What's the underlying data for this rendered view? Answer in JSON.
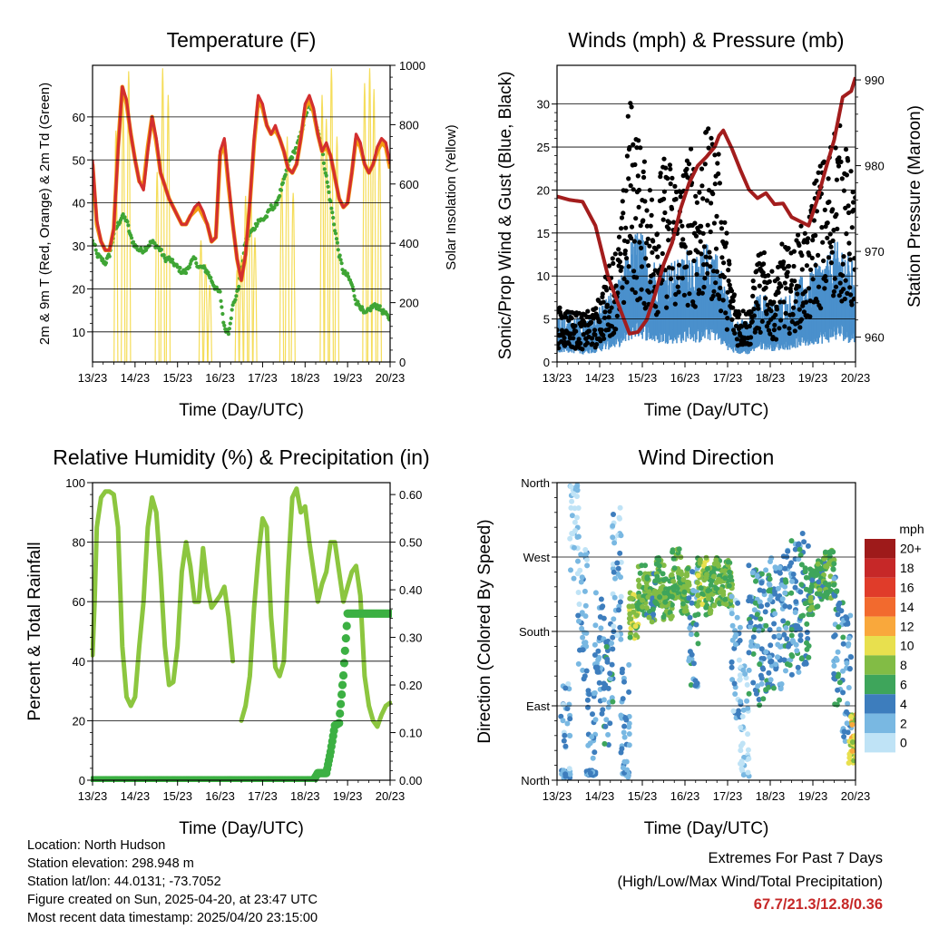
{
  "chart_data": [
    {
      "type": "line",
      "title": "Temperature (F)",
      "xlabel": "Time (Day/UTC)",
      "ylabel": "2m & 9m T (Red, Orange) & 2m Td (Green)",
      "ylabel_right": "Solar Insolation (Yellow)",
      "xticks": [
        "13/23",
        "14/23",
        "15/23",
        "16/23",
        "17/23",
        "18/23",
        "19/23",
        "20/23"
      ],
      "ylim": [
        3,
        72
      ],
      "yticks": [
        10,
        20,
        30,
        40,
        50,
        60
      ],
      "ylim_right": [
        0,
        1000
      ],
      "yticks_right": [
        0,
        200,
        400,
        600,
        800,
        1000
      ],
      "grid": true,
      "x": [
        0,
        0.05,
        0.1,
        0.2,
        0.3,
        0.4,
        0.5,
        0.6,
        0.7,
        0.8,
        0.9,
        1.0,
        1.1,
        1.2,
        1.3,
        1.4,
        1.5,
        1.6,
        1.7,
        1.8,
        1.9,
        2.0,
        2.1,
        2.2,
        2.3,
        2.4,
        2.5,
        2.6,
        2.7,
        2.8,
        2.9,
        3.0,
        3.1,
        3.2,
        3.3,
        3.4,
        3.5,
        3.6,
        3.7,
        3.8,
        3.9,
        4.0,
        4.1,
        4.2,
        4.3,
        4.4,
        4.5,
        4.6,
        4.7,
        4.8,
        4.9,
        5.0,
        5.1,
        5.2,
        5.3,
        5.4,
        5.5,
        5.6,
        5.7,
        5.8,
        5.9,
        6.0,
        6.1,
        6.2,
        6.3,
        6.4,
        6.5,
        6.6,
        6.7,
        6.8,
        6.9,
        7.0
      ],
      "series": [
        {
          "values": [
            50,
            43,
            36,
            31,
            29,
            29,
            34,
            52,
            67,
            64,
            56,
            50,
            45,
            43,
            52,
            60,
            55,
            47,
            44,
            41,
            39,
            37,
            35,
            35,
            37,
            39,
            40,
            38,
            35,
            31,
            32,
            52,
            55,
            45,
            35,
            27,
            22,
            28,
            40,
            55,
            65,
            63,
            58,
            56,
            58,
            55,
            52,
            48,
            47,
            49,
            55,
            63,
            65,
            62,
            56,
            52,
            54,
            51,
            46,
            41,
            39,
            40,
            47,
            56,
            54,
            49,
            47,
            49,
            53,
            55,
            54,
            49
          ],
          "color": "#d32f2f"
        },
        {
          "values": [
            49,
            42,
            35,
            31,
            29,
            29,
            34,
            53,
            67,
            63,
            56,
            50,
            45,
            44,
            53,
            60,
            54,
            47,
            44,
            41,
            39,
            37,
            35,
            35,
            37,
            38,
            39,
            37,
            35,
            31,
            32,
            51,
            54,
            44,
            35,
            27,
            22,
            28,
            40,
            54,
            64,
            62,
            58,
            56,
            57,
            55,
            52,
            48,
            47,
            49,
            55,
            62,
            64,
            61,
            56,
            52,
            53,
            51,
            46,
            41,
            39,
            40,
            47,
            55,
            53,
            49,
            47,
            49,
            52,
            54,
            53,
            48
          ],
          "color": "#f39c12"
        },
        {
          "values": [
            31,
            30,
            28,
            27,
            26,
            28,
            33,
            35,
            37,
            36,
            32,
            30,
            29,
            29,
            30,
            31,
            30,
            29,
            27,
            27,
            26,
            25,
            24,
            24,
            26,
            27,
            25,
            25,
            24,
            22,
            20,
            19,
            11,
            10,
            16,
            19,
            24,
            31,
            33,
            34,
            36,
            36,
            37,
            39,
            39,
            42,
            45,
            49,
            51,
            53,
            56,
            60,
            63,
            61,
            57,
            52,
            46,
            40,
            34,
            28,
            24,
            23,
            21,
            17,
            16,
            14,
            15,
            16,
            16,
            15,
            14,
            13
          ],
          "color": "#3fa535"
        }
      ],
      "solar_peaks": [
        {
          "day": 0.55,
          "peak": 780
        },
        {
          "day": 0.72,
          "peak": 880
        },
        {
          "day": 0.85,
          "peak": 980
        },
        {
          "day": 1.52,
          "peak": 640
        },
        {
          "day": 1.65,
          "peak": 990
        },
        {
          "day": 1.78,
          "peak": 900
        },
        {
          "day": 2.55,
          "peak": 410
        },
        {
          "day": 2.66,
          "peak": 330
        },
        {
          "day": 2.76,
          "peak": 260
        },
        {
          "day": 3.4,
          "peak": 310
        },
        {
          "day": 3.5,
          "peak": 360
        },
        {
          "day": 3.6,
          "peak": 560
        },
        {
          "day": 3.72,
          "peak": 620
        },
        {
          "day": 3.82,
          "peak": 420
        },
        {
          "day": 4.45,
          "peak": 620
        },
        {
          "day": 4.58,
          "peak": 760
        },
        {
          "day": 4.72,
          "peak": 570
        },
        {
          "day": 5.4,
          "peak": 900
        },
        {
          "day": 5.5,
          "peak": 820
        },
        {
          "day": 5.62,
          "peak": 990
        },
        {
          "day": 5.75,
          "peak": 760
        },
        {
          "day": 6.4,
          "peak": 940
        },
        {
          "day": 6.52,
          "peak": 990
        },
        {
          "day": 6.62,
          "peak": 920
        },
        {
          "day": 6.75,
          "peak": 750
        }
      ],
      "solar_color": "#f5dd5a"
    },
    {
      "type": "scatter",
      "title": "Winds (mph) & Pressure (mb)",
      "xlabel": "Time (Day/UTC)",
      "ylabel": "Sonic/Prop Wind & Gust (Blue, Black)",
      "ylabel_right": "Station Pressure (Maroon)",
      "xticks": [
        "13/23",
        "14/23",
        "15/23",
        "16/23",
        "17/23",
        "18/23",
        "19/23",
        "20/23"
      ],
      "ylim": [
        0,
        34.5
      ],
      "yticks": [
        0,
        5,
        10,
        15,
        20,
        25,
        30
      ],
      "ylim_right": [
        957.1,
        991.7
      ],
      "yticks_right": [
        960,
        970,
        980,
        990
      ],
      "grid": true,
      "x": [
        0,
        0.3,
        0.6,
        0.9,
        1.2,
        1.5,
        1.7,
        1.9,
        2.1,
        2.3,
        2.5,
        2.7,
        2.9,
        3.1,
        3.3,
        3.5,
        3.7,
        3.8,
        3.9,
        4.1,
        4.3,
        4.5,
        4.7,
        4.9,
        5.1,
        5.3,
        5.5,
        5.7,
        5.9,
        6.1,
        6.3,
        6.5,
        6.7,
        6.9,
        7.0
      ],
      "wind_mean": [
        3,
        3,
        2.5,
        3,
        4,
        5,
        7,
        8,
        7,
        6,
        6,
        6,
        6,
        7,
        6,
        7,
        7,
        6,
        5,
        3,
        2.5,
        2.5,
        4,
        4,
        3.5,
        4,
        4,
        5,
        5,
        6,
        6,
        7,
        7,
        6,
        6
      ],
      "gust_mean": [
        4,
        4,
        3.5,
        4,
        7,
        10,
        20,
        17,
        14,
        13,
        15,
        15,
        14,
        16,
        15,
        17,
        17,
        15,
        12,
        6,
        4,
        4,
        8,
        8,
        6,
        9,
        8,
        10,
        10,
        15,
        15,
        18,
        17,
        14,
        13
      ],
      "series": [
        {
          "name": "Station Pressure",
          "values": [
            976.4,
            976,
            975.8,
            973,
            967,
            963,
            960.4,
            960.6,
            962,
            965,
            968.5,
            971,
            975,
            978,
            980,
            981,
            982.2,
            983.5,
            984.1,
            982,
            979.5,
            977.2,
            976.2,
            976.8,
            975.5,
            975.6,
            974,
            973.5,
            973,
            976,
            979.6,
            983,
            988,
            988.7,
            990.3
          ],
          "color": "#a31d1d"
        }
      ],
      "wind_color": "#4a90cc",
      "gust_color": "#000000"
    },
    {
      "type": "line",
      "title": "Relative Humidity (%) & Precipitation (in)",
      "xlabel": "Time (Day/UTC)",
      "ylabel": "Percent & Total Rainfall",
      "xticks": [
        "13/23",
        "14/23",
        "15/23",
        "16/23",
        "17/23",
        "18/23",
        "19/23",
        "20/23"
      ],
      "ylim": [
        0,
        100
      ],
      "yticks": [
        0,
        20,
        40,
        60,
        80,
        100
      ],
      "ylim_right": [
        0,
        0.625
      ],
      "yticks_right": [
        "0.00",
        "0.10",
        "0.20",
        "0.30",
        "0.40",
        "0.50",
        "0.60"
      ],
      "grid": true,
      "x": [
        0,
        0.05,
        0.1,
        0.2,
        0.3,
        0.4,
        0.5,
        0.6,
        0.7,
        0.8,
        0.9,
        1.0,
        1.1,
        1.2,
        1.3,
        1.4,
        1.5,
        1.6,
        1.7,
        1.8,
        1.9,
        2.0,
        2.1,
        2.2,
        2.3,
        2.4,
        2.5,
        2.6,
        2.7,
        2.8,
        2.9,
        3.0,
        3.1,
        3.2,
        3.3,
        3.4,
        3.5,
        3.6,
        3.7,
        3.8,
        3.9,
        4.0,
        4.1,
        4.2,
        4.3,
        4.4,
        4.5,
        4.6,
        4.7,
        4.8,
        4.9,
        5.0,
        5.1,
        5.2,
        5.3,
        5.4,
        5.5,
        5.6,
        5.7,
        5.8,
        5.9,
        6.0,
        6.1,
        6.2,
        6.3,
        6.4,
        6.5,
        6.6,
        6.7,
        6.8,
        6.9,
        7.0
      ],
      "series": [
        {
          "name": "RH",
          "values": [
            42,
            60,
            85,
            95,
            97,
            97,
            96,
            85,
            45,
            28,
            25,
            28,
            45,
            60,
            85,
            95,
            90,
            70,
            45,
            32,
            33,
            45,
            70,
            80,
            72,
            60,
            60,
            78,
            65,
            58,
            60,
            62,
            65,
            55,
            40,
            null,
            20,
            25,
            35,
            58,
            75,
            88,
            85,
            55,
            38,
            35,
            40,
            70,
            95,
            98,
            90,
            92,
            80,
            70,
            60,
            66,
            70,
            80,
            80,
            70,
            60,
            65,
            70,
            72,
            62,
            35,
            25,
            20,
            18,
            22,
            25,
            26
          ],
          "color": "#8cc63f"
        },
        {
          "name": "Precipitation",
          "values": [
            0,
            0,
            0,
            0,
            0,
            0,
            0,
            0,
            0,
            0,
            0,
            0,
            0,
            0,
            0,
            0,
            0,
            0,
            0,
            0,
            0,
            0,
            0,
            0,
            0,
            0,
            0,
            0,
            0,
            0,
            0,
            0,
            0,
            0,
            0,
            0,
            0,
            0,
            0,
            0,
            0,
            0,
            0,
            0,
            0,
            0,
            0,
            0,
            0,
            0,
            0,
            0,
            0,
            0,
            0.015,
            0.015,
            0.015,
            0.06,
            0.115,
            0.12,
            0.22,
            0.35,
            0.35,
            0.35,
            0.35,
            0.35,
            0.35,
            0.35,
            0.35,
            0.35,
            0.35,
            0.35
          ],
          "color": "#3cb043"
        }
      ]
    },
    {
      "type": "scatter",
      "title": "Wind Direction",
      "xlabel": "Time (Day/UTC)",
      "ylabel": "Direction (Colored By Speed)",
      "xticks": [
        "13/23",
        "14/23",
        "15/23",
        "16/23",
        "17/23",
        "18/23",
        "19/23",
        "20/23"
      ],
      "ylim": [
        0,
        360
      ],
      "yticks": [
        "North",
        "East",
        "South",
        "West",
        "North"
      ],
      "ytick_values": [
        0,
        90,
        180,
        270,
        360
      ],
      "grid": true,
      "x": [
        0.2,
        0.4,
        0.6,
        0.8,
        1.0,
        1.2,
        1.4,
        1.6,
        1.8,
        2.0,
        2.2,
        2.4,
        2.6,
        2.8,
        3.0,
        3.2,
        3.4,
        3.6,
        3.8,
        4.0,
        4.2,
        4.4,
        4.6,
        4.8,
        5.0,
        5.2,
        5.4,
        5.6,
        5.8,
        6.0,
        6.2,
        6.4,
        6.6,
        6.8,
        6.95
      ],
      "y": [
        40,
        320,
        200,
        30,
        150,
        120,
        250,
        60,
        200,
        230,
        220,
        240,
        220,
        250,
        230,
        190,
        240,
        230,
        240,
        240,
        150,
        60,
        180,
        170,
        190,
        190,
        200,
        210,
        220,
        230,
        240,
        250,
        170,
        120,
        50
      ],
      "speed": [
        2,
        1,
        2,
        3,
        3,
        4,
        2,
        3,
        8,
        7,
        6,
        7,
        7,
        7,
        7,
        4,
        8,
        7,
        7,
        7,
        2,
        1,
        4,
        4,
        4,
        3,
        4,
        4,
        5,
        6,
        6,
        7,
        4,
        3,
        10
      ],
      "colorbar": {
        "unit": "mph",
        "labels": [
          "20+",
          "18",
          "16",
          "14",
          "12",
          "10",
          "8",
          "6",
          "4",
          "2",
          "0"
        ],
        "colors": [
          "#9e1a1a",
          "#c62828",
          "#e03c2a",
          "#f26a2e",
          "#f9a83c",
          "#e8e04e",
          "#82bc45",
          "#3ea55b",
          "#3d7dbd",
          "#79b8e2",
          "#bfe3f6"
        ]
      }
    }
  ],
  "info": {
    "location": "Location: North Hudson",
    "elevation": "Station elevation: 298.948 m",
    "latlon": "Station lat/lon: 44.0131; -73.7052",
    "created": "Figure created on Sun, 2025-04-20, at 23:47 UTC",
    "timestamp": "Most recent data timestamp: 2025/04/20 23:15:00"
  },
  "extremes": {
    "title": "Extremes For Past 7 Days",
    "legend": "(High/Low/Max Wind/Total Precipitation)",
    "values": "67.7/21.3/12.8/0.36"
  }
}
